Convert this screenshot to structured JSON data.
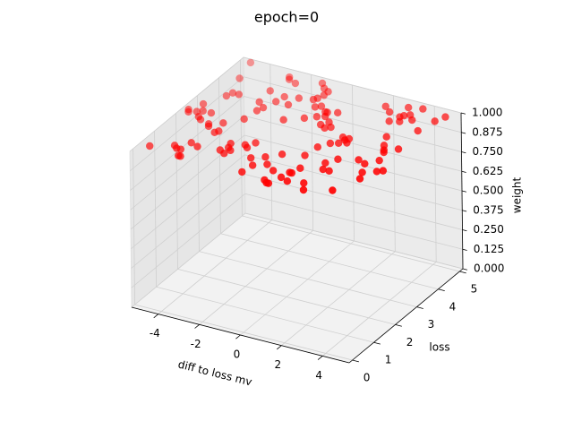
{
  "chart_data": {
    "type": "scatter3d",
    "title": "epoch=0",
    "xlabel": "diff to loss mv",
    "ylabel": "loss",
    "zlabel": "weight",
    "color": "#ff0000",
    "grid": true,
    "xlim": [
      -5.3,
      5.3
    ],
    "ylim": [
      -0.15,
      5.15
    ],
    "zlim": [
      0,
      1
    ],
    "xticks": [
      -4,
      -2,
      0,
      2,
      4
    ],
    "yticks": [
      0,
      1,
      2,
      3,
      4,
      5
    ],
    "zticks": [
      {
        "value": 0,
        "label": "0.000"
      },
      {
        "value": 0.125,
        "label": "0.125"
      },
      {
        "value": 0.25,
        "label": "0.250"
      },
      {
        "value": 0.375,
        "label": "0.375"
      },
      {
        "value": 0.5,
        "label": "0.500"
      },
      {
        "value": 0.625,
        "label": "0.625"
      },
      {
        "value": 0.75,
        "label": "0.750"
      },
      {
        "value": 0.875,
        "label": "0.875"
      },
      {
        "value": 1,
        "label": "1.000"
      }
    ],
    "x": [
      -4.8,
      -3.1,
      2.2,
      4.5,
      0.3,
      -1.7,
      3.9,
      -0.8,
      1.4,
      -4.2,
      2.9,
      -2.5,
      4.9,
      -3.6,
      0.9,
      -0.1,
      3.3,
      -4.9,
      1.8,
      -2.0,
      4.1,
      -1.2,
      2.6,
      -3.8,
      0.5,
      -4.5,
      3.6,
      -0.5,
      1.1,
      -2.9,
      4.7,
      -3.3,
      2.0,
      -1.5,
      0.0,
      3.0,
      -4.0,
      1.6,
      -2.7,
      4.3,
      -0.9,
      2.4,
      -3.5,
      0.7,
      -1.9,
      3.8,
      -4.6,
      1.3,
      -0.3,
      2.8,
      -2.2,
      4.6,
      -3.0,
      0.2,
      -1.0,
      3.4,
      -4.3,
      1.9,
      -2.4,
      4.0,
      -0.6,
      2.1,
      -3.9,
      0.8,
      -1.6,
      3.1,
      -4.7,
      1.5,
      -0.2,
      2.7,
      -2.8,
      4.4,
      -3.4,
      0.4,
      -1.3,
      3.7,
      -4.1,
      1.0,
      -2.1,
      4.8,
      -0.7,
      2.3,
      -3.7,
      0.6,
      -1.8,
      3.5,
      -4.4,
      1.7,
      -0.4,
      2.5,
      -2.6,
      4.2,
      -3.2,
      0.1,
      -1.1,
      3.2,
      -5.0,
      1.2,
      -2.3,
      5.0,
      -4.8,
      -2.0,
      1.5,
      3.6,
      -0.6,
      4.0,
      -3.5,
      2.2,
      -1.4,
      0.9,
      -4.1,
      3.0,
      -2.7,
      1.8,
      -0.2,
      4.5,
      -3.0,
      2.6,
      -1.0,
      0.4
    ],
    "y": [
      0.3,
      2.1,
      4.6,
      1.2,
      3.7,
      0.8,
      2.9,
      4.1,
      1.6,
      3.3,
      0.1,
      2.5,
      4.8,
      1.9,
      3.0,
      0.6,
      4.4,
      2.2,
      1.0,
      3.9,
      2.7,
      4.9,
      0.4,
      3.5,
      1.4,
      4.2,
      2.0,
      0.9,
      3.1,
      1.7,
      4.5,
      0.2,
      2.8,
      3.6,
      1.1,
      4.0,
      2.4,
      0.7,
      3.4,
      1.5,
      4.7,
      2.6,
      0.5,
      3.8,
      1.3,
      4.3,
      2.3,
      0.0,
      3.2,
      1.8,
      4.6,
      2.9,
      0.8,
      3.7,
      1.6,
      4.1,
      2.1,
      0.3,
      3.0,
      1.9,
      4.4,
      2.5,
      0.6,
      3.3,
      1.0,
      4.8,
      2.7,
      0.4,
      3.9,
      1.2,
      4.0,
      2.2,
      0.9,
      3.5,
      1.4,
      4.9,
      2.0,
      0.1,
      3.6,
      1.7,
      4.2,
      2.8,
      0.5,
      3.1,
      1.1,
      4.5,
      2.4,
      0.7,
      3.8,
      1.5,
      4.7,
      2.6,
      0.2,
      3.4,
      1.3,
      4.3,
      2.3,
      0.0,
      3.2,
      1.8,
      5.0,
      0.9,
      2.1,
      3.3,
      4.6,
      0.4,
      1.8,
      2.7,
      4.0,
      0.6,
      3.5,
      1.2,
      4.8,
      2.4,
      0.2,
      3.9,
      1.6,
      4.4,
      2.9,
      0.8
    ],
    "z": [
      1,
      1,
      1,
      1,
      1,
      1,
      1,
      1,
      1,
      1,
      1,
      1,
      1,
      1,
      1,
      1,
      1,
      1,
      1,
      1,
      1,
      1,
      1,
      1,
      1,
      1,
      1,
      1,
      1,
      1,
      1,
      1,
      1,
      1,
      1,
      1,
      1,
      1,
      1,
      1,
      1,
      1,
      1,
      1,
      1,
      1,
      1,
      1,
      1,
      1,
      1,
      1,
      1,
      1,
      1,
      1,
      1,
      1,
      1,
      1,
      1,
      1,
      1,
      1,
      1,
      1,
      1,
      1,
      1,
      1,
      1,
      1,
      1,
      1,
      1,
      1,
      1,
      1,
      1,
      1,
      1,
      1,
      1,
      1,
      1,
      1,
      1,
      1,
      1,
      1,
      1,
      1,
      1,
      1,
      1,
      1,
      1,
      1,
      1,
      1,
      1,
      1,
      1,
      1,
      1,
      1,
      1,
      1,
      1,
      1,
      1,
      1,
      1,
      1,
      1,
      1,
      1,
      1,
      1,
      1
    ]
  }
}
